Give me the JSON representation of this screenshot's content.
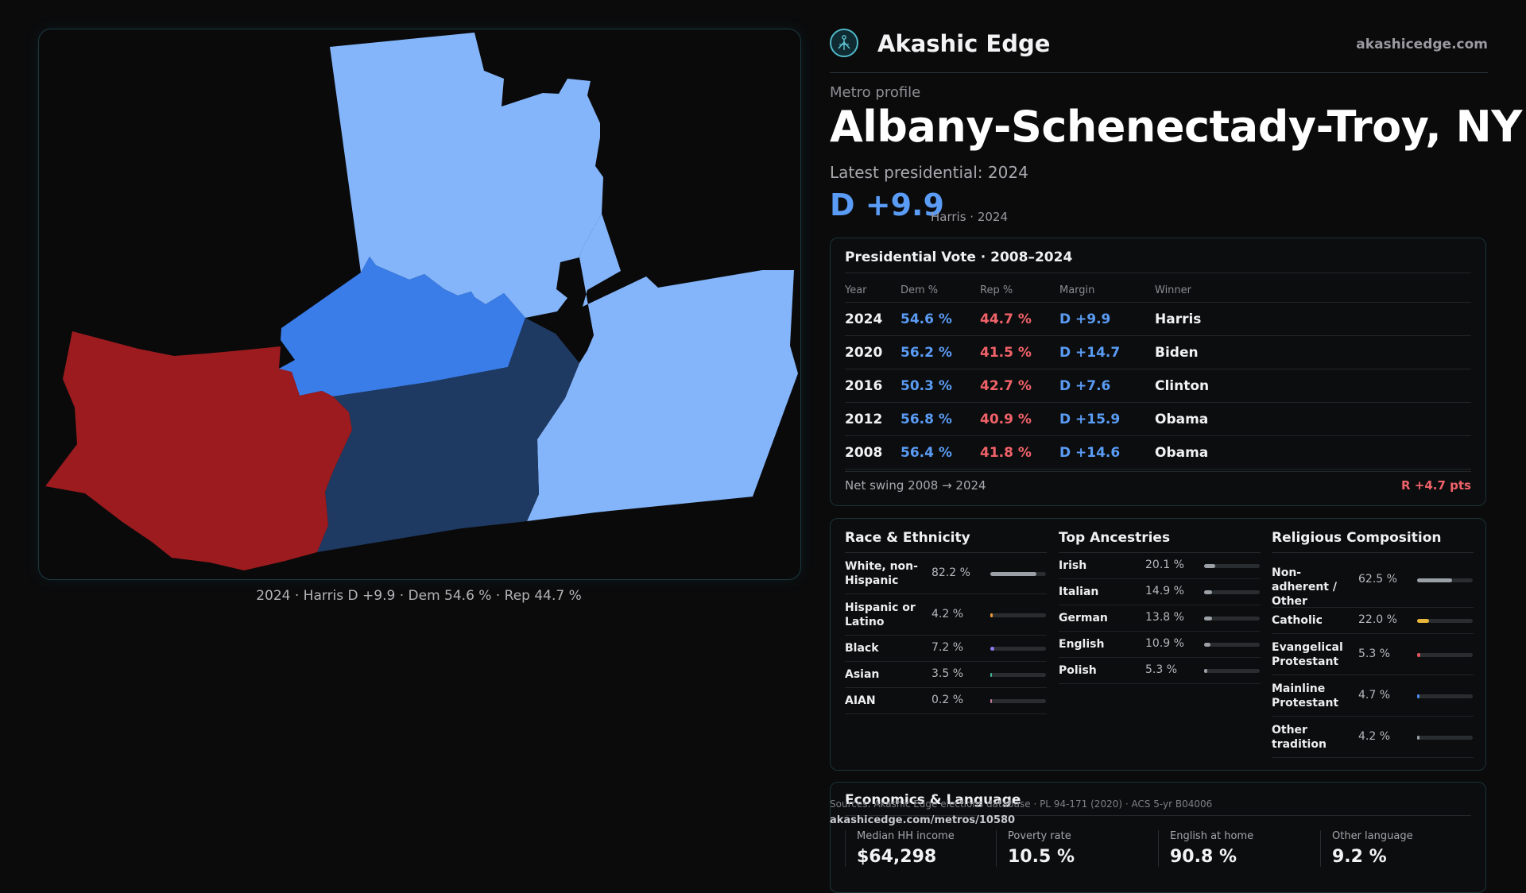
{
  "brand": {
    "name": "Akashic Edge",
    "url": "akashicedge.com",
    "icon": "tree-of-life-logo-icon"
  },
  "header": {
    "eyebrow": "Metro profile",
    "title": "Albany-Schenectady-Troy,  NY",
    "latest": "Latest presidential: 2024",
    "margin": "D +9.9",
    "margin_sub": "Harris · 2024"
  },
  "map": {
    "caption": "2024 · Harris D +9.9 · Dem 54.6 % · Rep 44.7 %",
    "colors": {
      "dem_light": "#84b5fb",
      "dem_mid": "#3a7de8",
      "dem_dark": "#1f3a62",
      "rep": "#9c1b1e"
    }
  },
  "vote": {
    "title": "Presidential Vote · 2008–2024",
    "headers": [
      "Year",
      "Dem %",
      "Rep %",
      "Margin",
      "Winner"
    ],
    "rows": [
      {
        "year": "2024",
        "dem": "54.6 %",
        "rep": "44.7 %",
        "margin": "D +9.9",
        "winner": "Harris"
      },
      {
        "year": "2020",
        "dem": "56.2 %",
        "rep": "41.5 %",
        "margin": "D +14.7",
        "winner": "Biden"
      },
      {
        "year": "2016",
        "dem": "50.3 %",
        "rep": "42.7 %",
        "margin": "D +7.6",
        "winner": "Clinton"
      },
      {
        "year": "2012",
        "dem": "56.8 %",
        "rep": "40.9 %",
        "margin": "D +15.9",
        "winner": "Obama"
      },
      {
        "year": "2008",
        "dem": "56.4 %",
        "rep": "41.8 %",
        "margin": "D +14.6",
        "winner": "Obama"
      }
    ],
    "swing_label": "Net swing 2008 → 2024",
    "swing_value": "R +4.7 pts"
  },
  "race": {
    "title": "Race & Ethnicity",
    "items": [
      {
        "label": "White, non-Hispanic",
        "value": "82.2 %",
        "pct": 82.2,
        "color": "#9aa0a6"
      },
      {
        "label": "Hispanic or Latino",
        "value": "4.2 %",
        "pct": 4.2,
        "color": "#e89a3a"
      },
      {
        "label": "Black",
        "value": "7.2 %",
        "pct": 7.2,
        "color": "#8b7cf0"
      },
      {
        "label": "Asian",
        "value": "3.5 %",
        "pct": 3.5,
        "color": "#3fb89a"
      },
      {
        "label": "AIAN",
        "value": "0.2 %",
        "pct": 0.2,
        "color": "#c27a9a"
      }
    ]
  },
  "ancestry": {
    "title": "Top Ancestries",
    "items": [
      {
        "label": "Irish",
        "value": "20.1 %",
        "pct": 20.1,
        "color": "#9aa0a6"
      },
      {
        "label": "Italian",
        "value": "14.9 %",
        "pct": 14.9,
        "color": "#9aa0a6"
      },
      {
        "label": "German",
        "value": "13.8 %",
        "pct": 13.8,
        "color": "#9aa0a6"
      },
      {
        "label": "English",
        "value": "10.9 %",
        "pct": 10.9,
        "color": "#9aa0a6"
      },
      {
        "label": "Polish",
        "value": "5.3 %",
        "pct": 5.3,
        "color": "#9aa0a6"
      }
    ]
  },
  "religion": {
    "title": "Religious Composition",
    "items": [
      {
        "label": "Non-adherent / Other",
        "value": "62.5 %",
        "pct": 62.5,
        "color": "#9aa0a6"
      },
      {
        "label": "Catholic",
        "value": "22.0 %",
        "pct": 22.0,
        "color": "#e8b43a"
      },
      {
        "label": "Evangelical Protestant",
        "value": "5.3 %",
        "pct": 5.3,
        "color": "#e0555c"
      },
      {
        "label": "Mainline Protestant",
        "value": "4.7 %",
        "pct": 4.7,
        "color": "#4a8cf0"
      },
      {
        "label": "Other tradition",
        "value": "4.2 %",
        "pct": 4.2,
        "color": "#9aa0a6"
      }
    ]
  },
  "economics": {
    "title": "Economics & Language",
    "items": [
      {
        "label": "Median HH income",
        "value": "$64,298"
      },
      {
        "label": "Poverty rate",
        "value": "10.5 %"
      },
      {
        "label": "English at home",
        "value": "90.8 %"
      },
      {
        "label": "Other language",
        "value": "9.2 %"
      }
    ]
  },
  "footer": {
    "sources": "Sources: Akashic Edge elections database · PL 94-171 (2020) · ACS 5-yr B04006",
    "url": "akashicedge.com/metros/10580"
  }
}
